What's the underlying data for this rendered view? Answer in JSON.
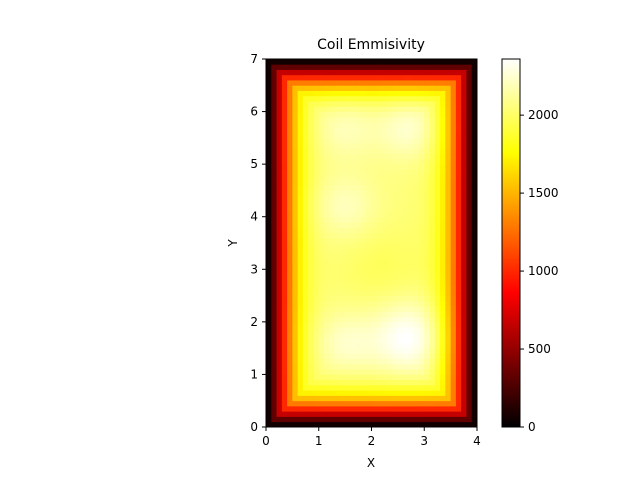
{
  "chart_data": {
    "type": "heatmap",
    "title": "Coil Emmisivity",
    "xlabel": "X",
    "ylabel": "Y",
    "xlim": [
      0,
      4
    ],
    "ylim": [
      0,
      7
    ],
    "x_ticks": [
      "0",
      "1",
      "2",
      "3",
      "4"
    ],
    "y_ticks": [
      "0",
      "1",
      "2",
      "3",
      "4",
      "5",
      "6",
      "7"
    ],
    "grid": false,
    "colormap": "hot",
    "colorbar": {
      "range": [
        0,
        2360
      ],
      "ticks": [
        "0",
        "500",
        "1000",
        "1500",
        "2000"
      ]
    },
    "grid_shape": {
      "nx": 40,
      "ny": 70
    },
    "value_model": {
      "edge_value": 0,
      "interior_value": 2050,
      "edge_falloff": 0.45,
      "hotspots": [
        {
          "x": 2.7,
          "y": 1.7,
          "radius": 0.7,
          "delta": 320
        },
        {
          "x": 1.5,
          "y": 1.6,
          "radius": 0.6,
          "delta": 180
        },
        {
          "x": 1.5,
          "y": 4.2,
          "radius": 0.6,
          "delta": 160
        },
        {
          "x": 2.7,
          "y": 5.7,
          "radius": 0.6,
          "delta": 200
        },
        {
          "x": 1.5,
          "y": 5.7,
          "radius": 0.6,
          "delta": 150
        },
        {
          "x": 2.2,
          "y": 3.0,
          "radius": 0.8,
          "delta": -80
        }
      ]
    }
  }
}
